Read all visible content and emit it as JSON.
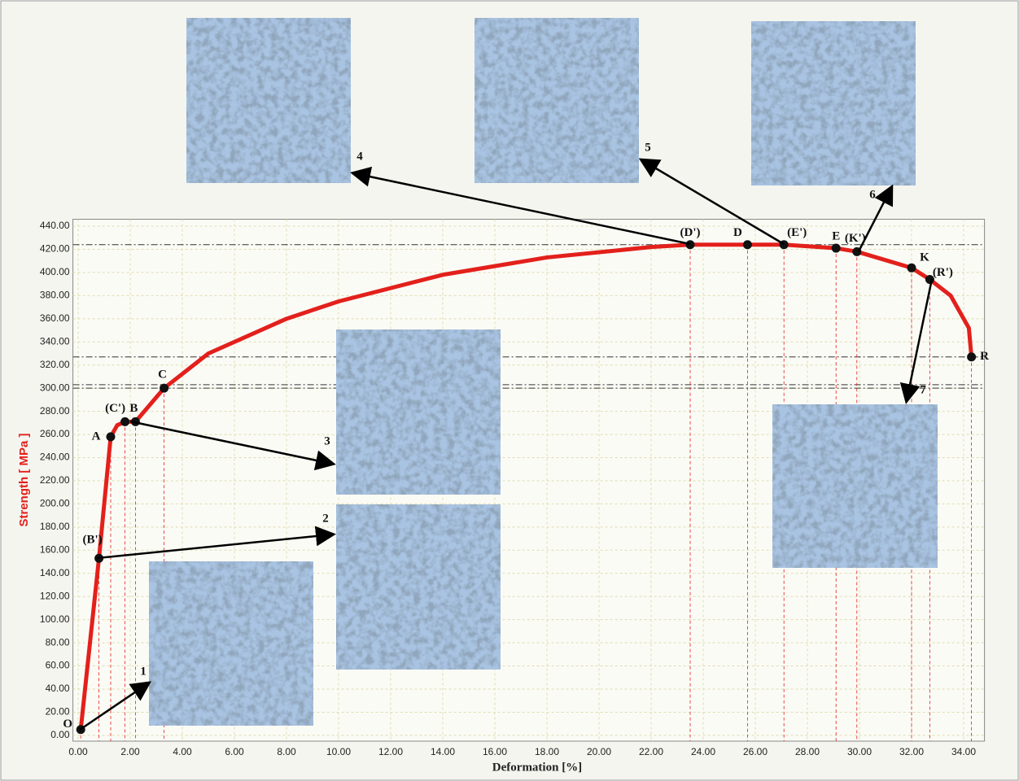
{
  "chart_data": {
    "type": "line",
    "x_label": "Deformation [%]",
    "y_label": "Strength [ MPa ]",
    "color": "#e3201b",
    "x": [
      0.1,
      0.8,
      1.25,
      1.5,
      1.8,
      2.2,
      3.3,
      5,
      8,
      10,
      14,
      18,
      22,
      23.5,
      25.7,
      27.1,
      29.1,
      29.9,
      32,
      32.7,
      33.5,
      34.2,
      34.3
    ],
    "values": [
      5,
      153,
      258,
      268,
      271,
      271,
      300,
      330,
      360,
      375,
      398,
      413,
      422,
      424,
      424,
      424,
      421,
      418,
      404,
      394,
      380,
      352,
      327
    ],
    "points": [
      {
        "label": "O",
        "x": 0.1,
        "y": 5
      },
      {
        "label": "(B')",
        "x": 0.8,
        "y": 153
      },
      {
        "label": "A",
        "x": 1.25,
        "y": 258
      },
      {
        "label": "(C')",
        "x": 1.8,
        "y": 271
      },
      {
        "label": "B",
        "x": 2.2,
        "y": 271
      },
      {
        "label": "C",
        "x": 3.3,
        "y": 300
      },
      {
        "label": "(D')",
        "x": 23.5,
        "y": 424
      },
      {
        "label": "D",
        "x": 25.7,
        "y": 424
      },
      {
        "label": "(E')",
        "x": 27.1,
        "y": 424
      },
      {
        "label": "E",
        "x": 29.1,
        "y": 421
      },
      {
        "label": "(K')",
        "x": 29.9,
        "y": 418
      },
      {
        "label": "K",
        "x": 32,
        "y": 404
      },
      {
        "label": "(R')",
        "x": 32.7,
        "y": 394
      },
      {
        "label": "R",
        "x": 34.3,
        "y": 327
      }
    ],
    "reference_lines": [
      424,
      327,
      303,
      300
    ],
    "micrographs": [
      "1",
      "2",
      "3",
      "4",
      "5",
      "6",
      "7"
    ],
    "xlim": [
      -0.2,
      34.8
    ],
    "ylim": [
      -5,
      446
    ],
    "xticks": [
      {
        "value": 0,
        "label": "0.00"
      },
      {
        "value": 2,
        "label": "2.00"
      },
      {
        "value": 4,
        "label": "4.00"
      },
      {
        "value": 6,
        "label": "6.00"
      },
      {
        "value": 8,
        "label": "8.00"
      },
      {
        "value": 10,
        "label": "10.00"
      },
      {
        "value": 12,
        "label": "12.00"
      },
      {
        "value": 14,
        "label": "14.00"
      },
      {
        "value": 16,
        "label": "16.00"
      },
      {
        "value": 18,
        "label": "18.00"
      },
      {
        "value": 20,
        "label": "20.00"
      },
      {
        "value": 22,
        "label": "22.00"
      },
      {
        "value": 24,
        "label": "24.00"
      },
      {
        "value": 26,
        "label": "26.00"
      },
      {
        "value": 28,
        "label": "28.00"
      },
      {
        "value": 30,
        "label": "30.00"
      },
      {
        "value": 32,
        "label": "32.00"
      },
      {
        "value": 34,
        "label": "34.00"
      }
    ],
    "yticks": [
      {
        "value": 0,
        "label": "0.00"
      },
      {
        "value": 20,
        "label": "20.00"
      },
      {
        "value": 40,
        "label": "40.00"
      },
      {
        "value": 60,
        "label": "60.00"
      },
      {
        "value": 80,
        "label": "80.00"
      },
      {
        "value": 100,
        "label": "100.00"
      },
      {
        "value": 120,
        "label": "120.00"
      },
      {
        "value": 140,
        "label": "140.00"
      },
      {
        "value": 160,
        "label": "160.00"
      },
      {
        "value": 180,
        "label": "180.00"
      },
      {
        "value": 200,
        "label": "200.00"
      },
      {
        "value": 220,
        "label": "220.00"
      },
      {
        "value": 240,
        "label": "240.00"
      },
      {
        "value": 260,
        "label": "260.00"
      },
      {
        "value": 280,
        "label": "280.00"
      },
      {
        "value": 300,
        "label": "300.00"
      },
      {
        "value": 320,
        "label": "320.00"
      },
      {
        "value": 340,
        "label": "340.00"
      },
      {
        "value": 360,
        "label": "360.00"
      },
      {
        "value": 380,
        "label": "380.00"
      },
      {
        "value": 400,
        "label": "400.00"
      },
      {
        "value": 420,
        "label": "420.00"
      },
      {
        "value": 440,
        "label": "440.00"
      }
    ],
    "grid": true
  }
}
